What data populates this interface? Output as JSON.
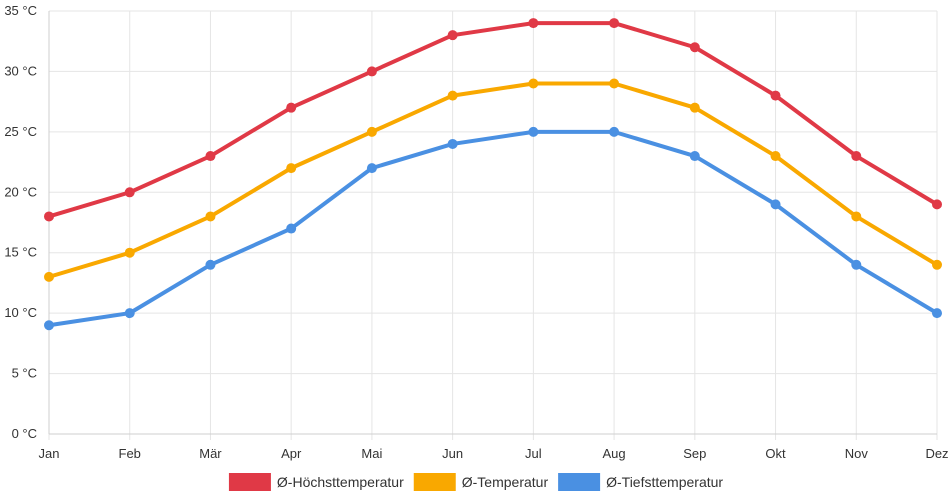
{
  "chart_data": {
    "type": "line",
    "categories": [
      "Jan",
      "Feb",
      "Mär",
      "Apr",
      "Mai",
      "Jun",
      "Jul",
      "Aug",
      "Sep",
      "Okt",
      "Nov",
      "Dez"
    ],
    "y_ticks": [
      "0 °C",
      "5 °C",
      "10 °C",
      "15 °C",
      "20 °C",
      "25 °C",
      "30 °C",
      "35 °C"
    ],
    "ylim": [
      0,
      35
    ],
    "y_step": 5,
    "grid": true,
    "legend_position": "bottom",
    "series": [
      {
        "name": "Ø-Höchsttemperatur",
        "color": "#e03946",
        "values": [
          18,
          20,
          23,
          27,
          30,
          33,
          34,
          34,
          32,
          28,
          23,
          19
        ]
      },
      {
        "name": "Ø-Temperatur",
        "color": "#f9a800",
        "values": [
          13,
          15,
          18,
          22,
          25,
          28,
          29,
          29,
          27,
          23,
          18,
          14
        ]
      },
      {
        "name": "Ø-Tiefsttemperatur",
        "color": "#4a90e2",
        "values": [
          9,
          10,
          14,
          17,
          22,
          24,
          25,
          25,
          23,
          19,
          14,
          10
        ]
      }
    ]
  }
}
